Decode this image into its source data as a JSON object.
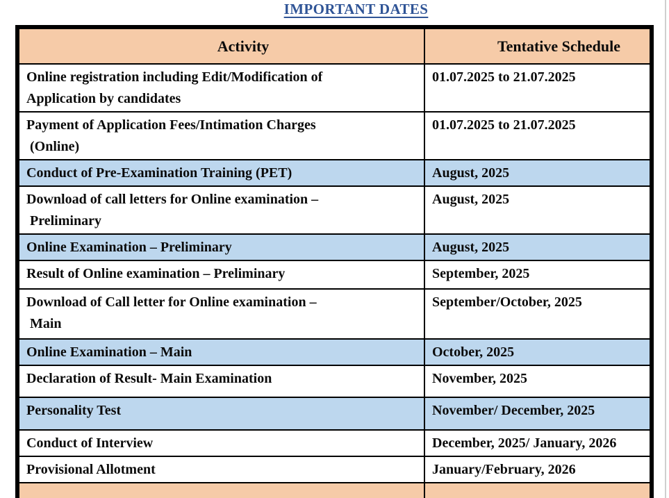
{
  "palette": {
    "title_color": "#2F5496",
    "header_bg": "#F6CBA8",
    "highlight_bg": "#BDD7EE",
    "border_color": "#000000"
  },
  "title": "IMPORTANT DATES",
  "table": {
    "columns": [
      "Activity",
      "Tentative Schedule"
    ],
    "rows": [
      {
        "activity": "Online registration including Edit/Modification of\nApplication by candidates",
        "schedule": "01.07.2025 to 21.07.2025",
        "style": "plain"
      },
      {
        "activity": "Payment of Application Fees/Intimation Charges\n (Online)",
        "schedule": "01.07.2025 to 21.07.2025",
        "style": "plain"
      },
      {
        "activity": "Conduct of Pre-Examination Training (PET)",
        "schedule": "August, 2025",
        "style": "highlight"
      },
      {
        "activity": "Download of call letters for Online examination –\n Preliminary",
        "schedule": "August, 2025",
        "style": "plain"
      },
      {
        "activity": "Online Examination – Preliminary",
        "schedule": "August, 2025",
        "style": "highlight"
      },
      {
        "activity": "Result of Online examination – Preliminary",
        "schedule": "September, 2025",
        "style": "plain"
      },
      {
        "activity": "Download of Call letter for Online examination –\n Main",
        "schedule": "September/October, 2025",
        "style": "plain"
      },
      {
        "activity": "Online Examination – Main",
        "schedule": "October, 2025",
        "style": "highlight"
      },
      {
        "activity": "Declaration of Result- Main Examination",
        "schedule": "November, 2025",
        "style": "plain"
      },
      {
        "activity": "Personality Test",
        "schedule": "November/ December, 2025",
        "style": "highlight"
      },
      {
        "activity": "Conduct of Interview",
        "schedule": "December, 2025/ January, 2026",
        "style": "plain"
      },
      {
        "activity": "Provisional Allotment",
        "schedule": "January/February, 2026",
        "style": "plain"
      },
      {
        "activity": "",
        "schedule": "",
        "style": "accent"
      }
    ]
  }
}
